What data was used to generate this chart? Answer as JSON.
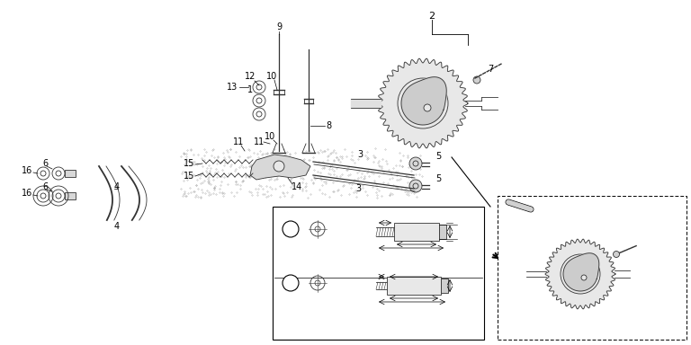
{
  "bg_color": "#ffffff",
  "fig_width": 7.68,
  "fig_height": 3.84,
  "dpi": 100,
  "gray": "#333333",
  "black": "#000000",
  "light_gray": "#aaaaaa",
  "diagram_code": "ZDX0E0900A"
}
